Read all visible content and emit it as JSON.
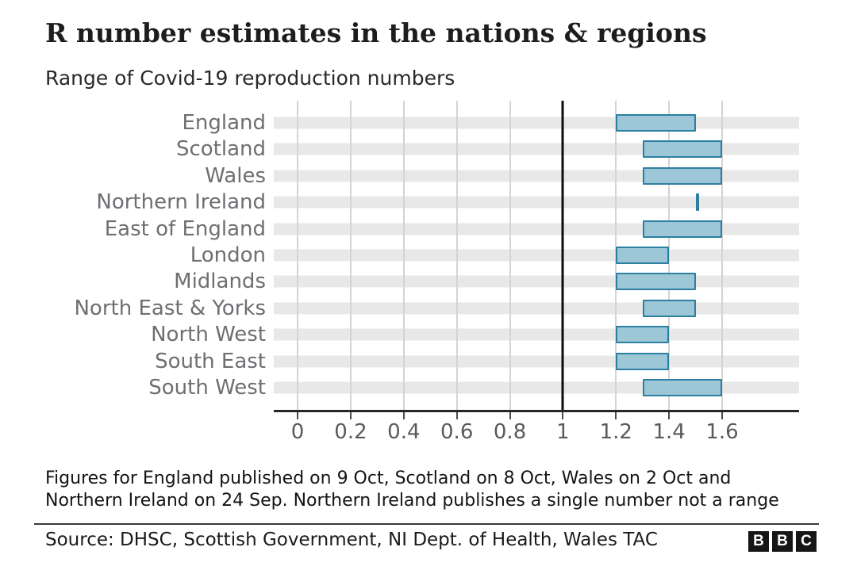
{
  "title": "R number estimates in the nations & regions",
  "subtitle": "Range of Covid-19 reproduction numbers",
  "footnote": {
    "line1": "Figures for England published on 9 Oct, Scotland on 8 Oct, Wales on 2 Oct and",
    "line2": "Northern Ireland on 24 Sep. Northern Ireland publishes a single number not a range"
  },
  "source_text": "Source: DHSC, Scottish Government, NI Dept. of Health, Wales TAC",
  "logo_letters": [
    "B",
    "B",
    "C"
  ],
  "colors": {
    "bar_fill": "#9dc7d7",
    "bar_border": "#2d7fa1",
    "row_band": "#e8e8e8",
    "gridline": "#d4d4d4",
    "reference_line": "#0d0d0d",
    "axis_baseline": "#262626",
    "category_label": "#6e6e73",
    "tick_label": "#5a5a5a"
  },
  "chart_data": {
    "type": "bar",
    "variant": "horizontal-range-bar",
    "title": "R number estimates in the nations & regions",
    "subtitle": "Range of Covid-19 reproduction numbers",
    "xlabel": "",
    "ylabel": "",
    "grid": "vertical",
    "legend": "none",
    "x_domain": [
      -0.09,
      1.89
    ],
    "x_ticks": [
      0,
      0.2,
      0.4,
      0.6,
      0.8,
      1,
      1.2,
      1.4,
      1.6
    ],
    "x_tick_labels": [
      "0",
      "0.2",
      "0.4",
      "0.6",
      "0.8",
      "1",
      "1.2",
      "1.4",
      "1.6"
    ],
    "reference_line_x": 1,
    "categories": [
      "England",
      "Scotland",
      "Wales",
      "Northern Ireland",
      "East of England",
      "London",
      "Midlands",
      "North East & Yorks",
      "North West",
      "South East",
      "South West"
    ],
    "rows": [
      {
        "label": "England",
        "low": 1.2,
        "high": 1.5
      },
      {
        "label": "Scotland",
        "low": 1.3,
        "high": 1.6
      },
      {
        "label": "Wales",
        "low": 1.3,
        "high": 1.6
      },
      {
        "label": "Northern Ireland",
        "low": 1.5,
        "high": 1.5
      },
      {
        "label": "East of England",
        "low": 1.3,
        "high": 1.6
      },
      {
        "label": "London",
        "low": 1.2,
        "high": 1.4
      },
      {
        "label": "Midlands",
        "low": 1.2,
        "high": 1.5
      },
      {
        "label": "North East & Yorks",
        "low": 1.3,
        "high": 1.5
      },
      {
        "label": "North West",
        "low": 1.2,
        "high": 1.4
      },
      {
        "label": "South East",
        "low": 1.2,
        "high": 1.4
      },
      {
        "label": "South West",
        "low": 1.3,
        "high": 1.6
      }
    ]
  }
}
